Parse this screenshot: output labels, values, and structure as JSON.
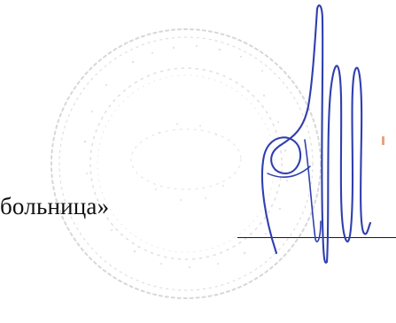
{
  "document": {
    "text_fragment": "больница»",
    "stamp_text": "",
    "colors": {
      "ink": "#111111",
      "signature_ink": "#2f3fae",
      "stamp": "#c8c8cc",
      "line": "#1a1a1a"
    }
  }
}
